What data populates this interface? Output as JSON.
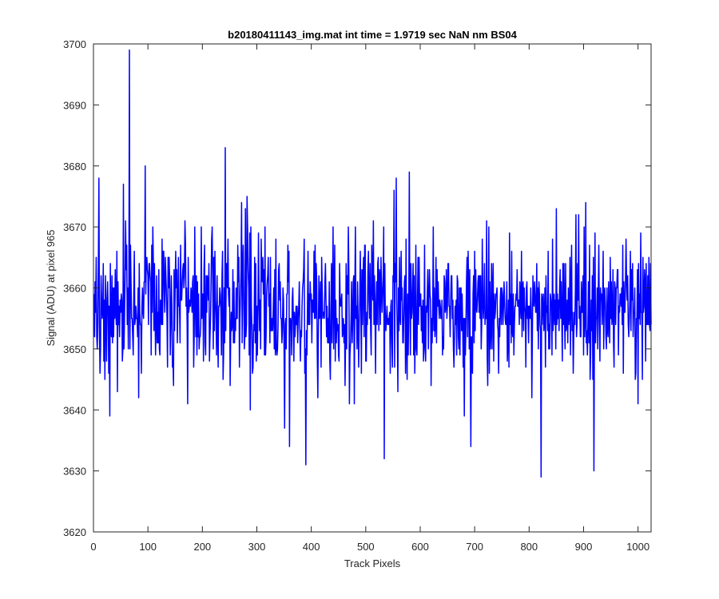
{
  "chart_data": {
    "type": "line",
    "title": "b20180411143_img.mat int time = 1.9719 sec  NaN nm BS04",
    "xlabel": "Track Pixels",
    "ylabel": "Signal (ADU) at pixel 965",
    "xlim": [
      0,
      1024
    ],
    "ylim": [
      3620,
      3700
    ],
    "xticks": [
      0,
      100,
      200,
      300,
      400,
      500,
      600,
      700,
      800,
      900,
      1000
    ],
    "yticks": [
      3620,
      3630,
      3640,
      3650,
      3660,
      3670,
      3680,
      3690,
      3700
    ],
    "grid": false,
    "legend": "none",
    "series": [
      {
        "color": "#0000ff",
        "x_start": 1,
        "x_step": 1,
        "count": 1024,
        "baseline": 3657,
        "noise_std": 6,
        "range_y": [
          3629,
          3699
        ],
        "peaks": [
          {
            "x": 10,
            "y": 3678
          },
          {
            "x": 55,
            "y": 3677
          },
          {
            "x": 66,
            "y": 3699
          },
          {
            "x": 95,
            "y": 3680
          },
          {
            "x": 242,
            "y": 3683
          },
          {
            "x": 556,
            "y": 3678
          },
          {
            "x": 580,
            "y": 3679
          }
        ],
        "troughs": [
          {
            "x": 30,
            "y": 3639
          },
          {
            "x": 351,
            "y": 3637
          },
          {
            "x": 360,
            "y": 3634
          },
          {
            "x": 390,
            "y": 3631
          },
          {
            "x": 534,
            "y": 3632
          },
          {
            "x": 693,
            "y": 3634
          },
          {
            "x": 822,
            "y": 3629
          },
          {
            "x": 919,
            "y": 3630
          }
        ]
      }
    ]
  }
}
